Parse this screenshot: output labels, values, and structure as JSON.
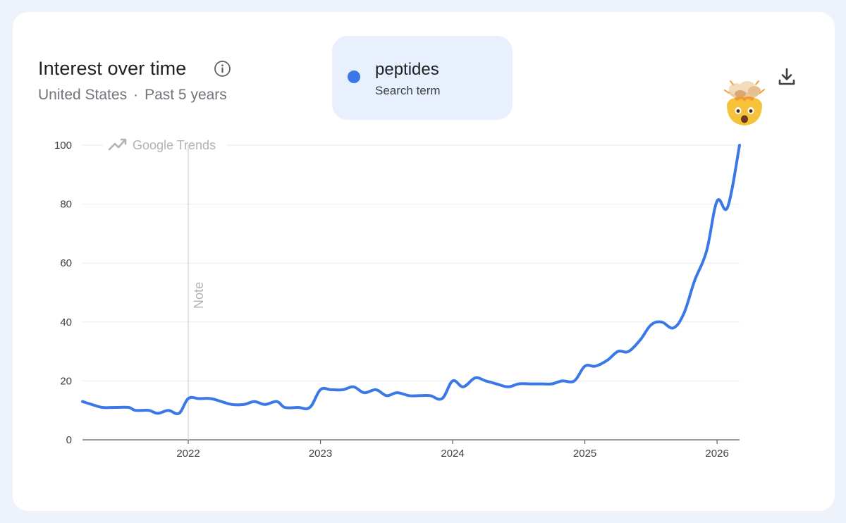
{
  "header": {
    "title": "Interest over time",
    "region": "United States",
    "separator": "·",
    "period": "Past 5 years"
  },
  "legend": {
    "term": "peptides",
    "subtitle": "Search term",
    "color": "#3b78e7"
  },
  "icons": {
    "info": "info-circle-icon",
    "download": "download-icon",
    "emoji": "exploding-head-emoji",
    "watermark_logo": "trend-arrow-icon"
  },
  "watermark": "Google Trends",
  "annotation": "Note",
  "chart_data": {
    "type": "line",
    "title": "Interest over time",
    "xlabel": "",
    "ylabel": "",
    "ylim": [
      0,
      100
    ],
    "yticks": [
      0,
      20,
      40,
      60,
      80,
      100
    ],
    "xticks": [
      "2022",
      "2023",
      "2024",
      "2025",
      "2026"
    ],
    "xlim": [
      2021.2,
      2026.17
    ],
    "grid": true,
    "legend_position": "top-center",
    "note_at": 2022.0,
    "series": [
      {
        "name": "peptides",
        "color": "#3b78e7",
        "points": [
          [
            2021.2,
            13
          ],
          [
            2021.27,
            12
          ],
          [
            2021.35,
            11
          ],
          [
            2021.45,
            11
          ],
          [
            2021.55,
            11
          ],
          [
            2021.6,
            10
          ],
          [
            2021.7,
            10
          ],
          [
            2021.77,
            9
          ],
          [
            2021.85,
            10
          ],
          [
            2021.93,
            9
          ],
          [
            2022.0,
            14
          ],
          [
            2022.08,
            14
          ],
          [
            2022.17,
            14
          ],
          [
            2022.25,
            13
          ],
          [
            2022.33,
            12
          ],
          [
            2022.42,
            12
          ],
          [
            2022.5,
            13
          ],
          [
            2022.58,
            12
          ],
          [
            2022.67,
            13
          ],
          [
            2022.73,
            11
          ],
          [
            2022.83,
            11
          ],
          [
            2022.92,
            11
          ],
          [
            2023.0,
            17
          ],
          [
            2023.08,
            17
          ],
          [
            2023.17,
            17
          ],
          [
            2023.25,
            18
          ],
          [
            2023.33,
            16
          ],
          [
            2023.42,
            17
          ],
          [
            2023.5,
            15
          ],
          [
            2023.58,
            16
          ],
          [
            2023.67,
            15
          ],
          [
            2023.75,
            15
          ],
          [
            2023.83,
            15
          ],
          [
            2023.92,
            14
          ],
          [
            2024.0,
            20
          ],
          [
            2024.08,
            18
          ],
          [
            2024.17,
            21
          ],
          [
            2024.25,
            20
          ],
          [
            2024.33,
            19
          ],
          [
            2024.42,
            18
          ],
          [
            2024.5,
            19
          ],
          [
            2024.58,
            19
          ],
          [
            2024.67,
            19
          ],
          [
            2024.75,
            19
          ],
          [
            2024.83,
            20
          ],
          [
            2024.92,
            20
          ],
          [
            2025.0,
            25
          ],
          [
            2025.08,
            25
          ],
          [
            2025.17,
            27
          ],
          [
            2025.25,
            30
          ],
          [
            2025.33,
            30
          ],
          [
            2025.42,
            34
          ],
          [
            2025.5,
            39
          ],
          [
            2025.58,
            40
          ],
          [
            2025.67,
            38
          ],
          [
            2025.75,
            43
          ],
          [
            2025.83,
            54
          ],
          [
            2025.92,
            64
          ],
          [
            2026.0,
            81
          ],
          [
            2026.08,
            79
          ],
          [
            2026.17,
            100
          ]
        ]
      }
    ]
  }
}
